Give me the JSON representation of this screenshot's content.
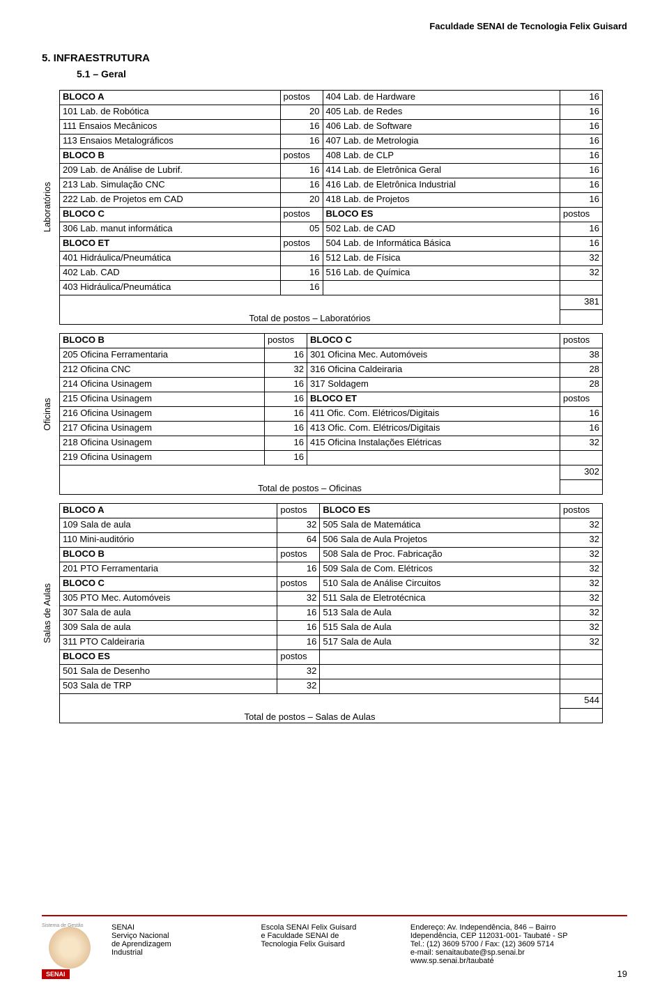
{
  "header": "Faculdade SENAI de Tecnologia Felix Guisard",
  "section_num": "5. INFRAESTRUTURA",
  "sub": "5.1 – Geral",
  "labs_label": "Laboratórios",
  "ofic_label": "Oficinas",
  "salas_label": "Salas de Aulas",
  "t1": {
    "rows": [
      [
        "BLOCO A",
        "postos",
        "404 Lab. de Hardware",
        "16",
        true
      ],
      [
        "101 Lab. de Robótica",
        "20",
        "405 Lab. de Redes",
        "16",
        false
      ],
      [
        "111 Ensaios Mecânicos",
        "16",
        "406 Lab. de Software",
        "16",
        false
      ],
      [
        "113 Ensaios Metalográficos",
        "16",
        "407 Lab. de Metrologia",
        "16",
        false
      ],
      [
        "BLOCO B",
        "postos",
        "408 Lab. de CLP",
        "16",
        true
      ],
      [
        "209 Lab. de Análise de Lubrif.",
        "16",
        "414 Lab. de Eletrônica Geral",
        "16",
        false
      ],
      [
        "213 Lab. Simulação CNC",
        "16",
        "416 Lab. de Eletrônica Industrial",
        "16",
        false
      ],
      [
        "222 Lab. de Projetos em CAD",
        "20",
        "418 Lab. de Projetos",
        "16",
        false
      ],
      [
        "BLOCO C",
        "postos",
        "BLOCO ES",
        "postos",
        true
      ],
      [
        "306 Lab. manut  informática",
        "05",
        "502 Lab. de CAD",
        "16",
        false
      ],
      [
        "BLOCO ET",
        "postos",
        "504 Lab. de Informática Básica",
        "16",
        true
      ],
      [
        "401 Hidráulica/Pneumática",
        "16",
        "512 Lab. de Física",
        "32",
        false
      ],
      [
        "402 Lab. CAD",
        "16",
        "516 Lab. de Química",
        "32",
        false
      ],
      [
        "403 Hidráulica/Pneumática",
        "16",
        "",
        "",
        false
      ]
    ],
    "total_label": "Total de postos – Laboratórios",
    "total": "381"
  },
  "t2": {
    "rows": [
      [
        "BLOCO B",
        "postos",
        "BLOCO C",
        "postos",
        true
      ],
      [
        "205 Oficina Ferramentaria",
        "16",
        "301 Oficina Mec. Automóveis",
        "38",
        false
      ],
      [
        "212 Oficina CNC",
        "32",
        "316 Oficina Caldeiraria",
        "28",
        false
      ],
      [
        "214 Oficina Usinagem",
        "16",
        "317 Soldagem",
        "28",
        false
      ],
      [
        "215 Oficina Usinagem",
        "16",
        "BLOCO ET",
        "postos",
        false
      ],
      [
        "216 Oficina Usinagem",
        "16",
        "411 Ofic. Com. Elétricos/Digitais",
        "16",
        false
      ],
      [
        "217 Oficina Usinagem",
        "16",
        "413 Ofic. Com. Elétricos/Digitais",
        "16",
        false
      ],
      [
        "218 Oficina Usinagem",
        "16",
        "415 Oficina Instalações Elétricas",
        "32",
        false
      ],
      [
        "219 Oficina Usinagem",
        "16",
        "",
        "",
        false
      ]
    ],
    "total_label": "Total de postos – Oficinas",
    "total": "302"
  },
  "t3": {
    "rows": [
      [
        "BLOCO A",
        "postos",
        "BLOCO ES",
        "postos",
        true
      ],
      [
        "109 Sala de aula",
        "32",
        "505 Sala de Matemática",
        "32",
        false
      ],
      [
        "110 Mini-auditório",
        "64",
        "506 Sala de Aula Projetos",
        "32",
        false
      ],
      [
        "BLOCO B",
        "postos",
        "508 Sala de Proc. Fabricação",
        "32",
        true
      ],
      [
        "201 PTO Ferramentaria",
        "16",
        "509 Sala de Com. Elétricos",
        "32",
        false
      ],
      [
        "BLOCO C",
        "postos",
        "510 Sala de Análise Circuitos",
        "32",
        true
      ],
      [
        "305 PTO Mec. Automóveis",
        "32",
        "511 Sala de Eletrotécnica",
        "32",
        false
      ],
      [
        "307 Sala de aula",
        "16",
        "513 Sala de Aula",
        "32",
        false
      ],
      [
        "309 Sala de aula",
        "16",
        "515 Sala de Aula",
        "32",
        false
      ],
      [
        "311 PTO Caldeiraria",
        "16",
        "517 Sala de Aula",
        "32",
        false
      ],
      [
        "BLOCO ES",
        "postos",
        "",
        "",
        true
      ],
      [
        "501 Sala de Desenho",
        "32",
        "",
        "",
        false
      ],
      [
        "503 Sala de TRP",
        "32",
        "",
        "",
        false
      ]
    ],
    "total_label": "Total de postos – Salas de Aulas",
    "total": "544"
  },
  "footer": {
    "logo_top": "Sistema de Gestão",
    "logo_brand": "SENAI",
    "col1": [
      "SENAI",
      "Serviço Nacional",
      "de Aprendizagem",
      "Industrial"
    ],
    "col2": [
      "Escola SENAI Felix Guisard",
      "e Faculdade SENAI de",
      "Tecnologia Felix Guisard"
    ],
    "col3": [
      "Endereço: Av. Independência, 846 – Bairro",
      "Idependência, CEP 112031-001- Taubaté - SP",
      "Tel.: (12) 3609 5700 / Fax: (12) 3609 5714",
      "e-mail:  senaitaubate@sp.senai.br",
      "www.sp.senai.br/taubaté"
    ]
  },
  "page_num": "19"
}
